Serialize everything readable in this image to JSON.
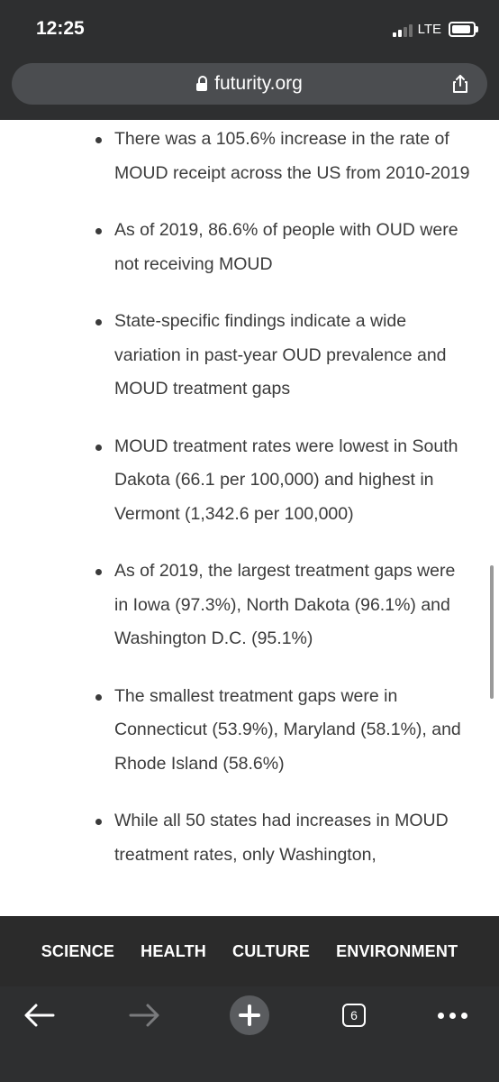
{
  "status_bar": {
    "time": "12:25",
    "network": "LTE"
  },
  "browser": {
    "url": "futurity.org",
    "tabs_count": "6"
  },
  "article": {
    "bullets": [
      "There was a 105.6% increase in the rate of MOUD receipt across the US from 2010-2019",
      "As of 2019, 86.6% of people with OUD were not receiving MOUD",
      "State-specific findings indicate a wide variation in past-year OUD prevalence and MOUD treatment gaps",
      "MOUD treatment rates were lowest in South Dakota (66.1 per 100,000) and highest in Vermont (1,342.6 per 100,000)",
      "As of 2019, the largest treatment gaps were in Iowa (97.3%), North Dakota (96.1%) and Washington D.C. (95.1%)",
      "The smallest treatment gaps were in Connecticut (53.9%), Maryland (58.1%), and Rhode Island (58.6%)",
      "While all 50 states had increases in MOUD treatment rates, only Washington,"
    ]
  },
  "category_nav": [
    "SCIENCE",
    "HEALTH",
    "CULTURE",
    "ENVIRONMENT"
  ],
  "colors": {
    "chrome": "#2e2f30",
    "urlbar": "#4b4d50",
    "nav": "#2b2b2b",
    "text": "#3b3b3b"
  }
}
